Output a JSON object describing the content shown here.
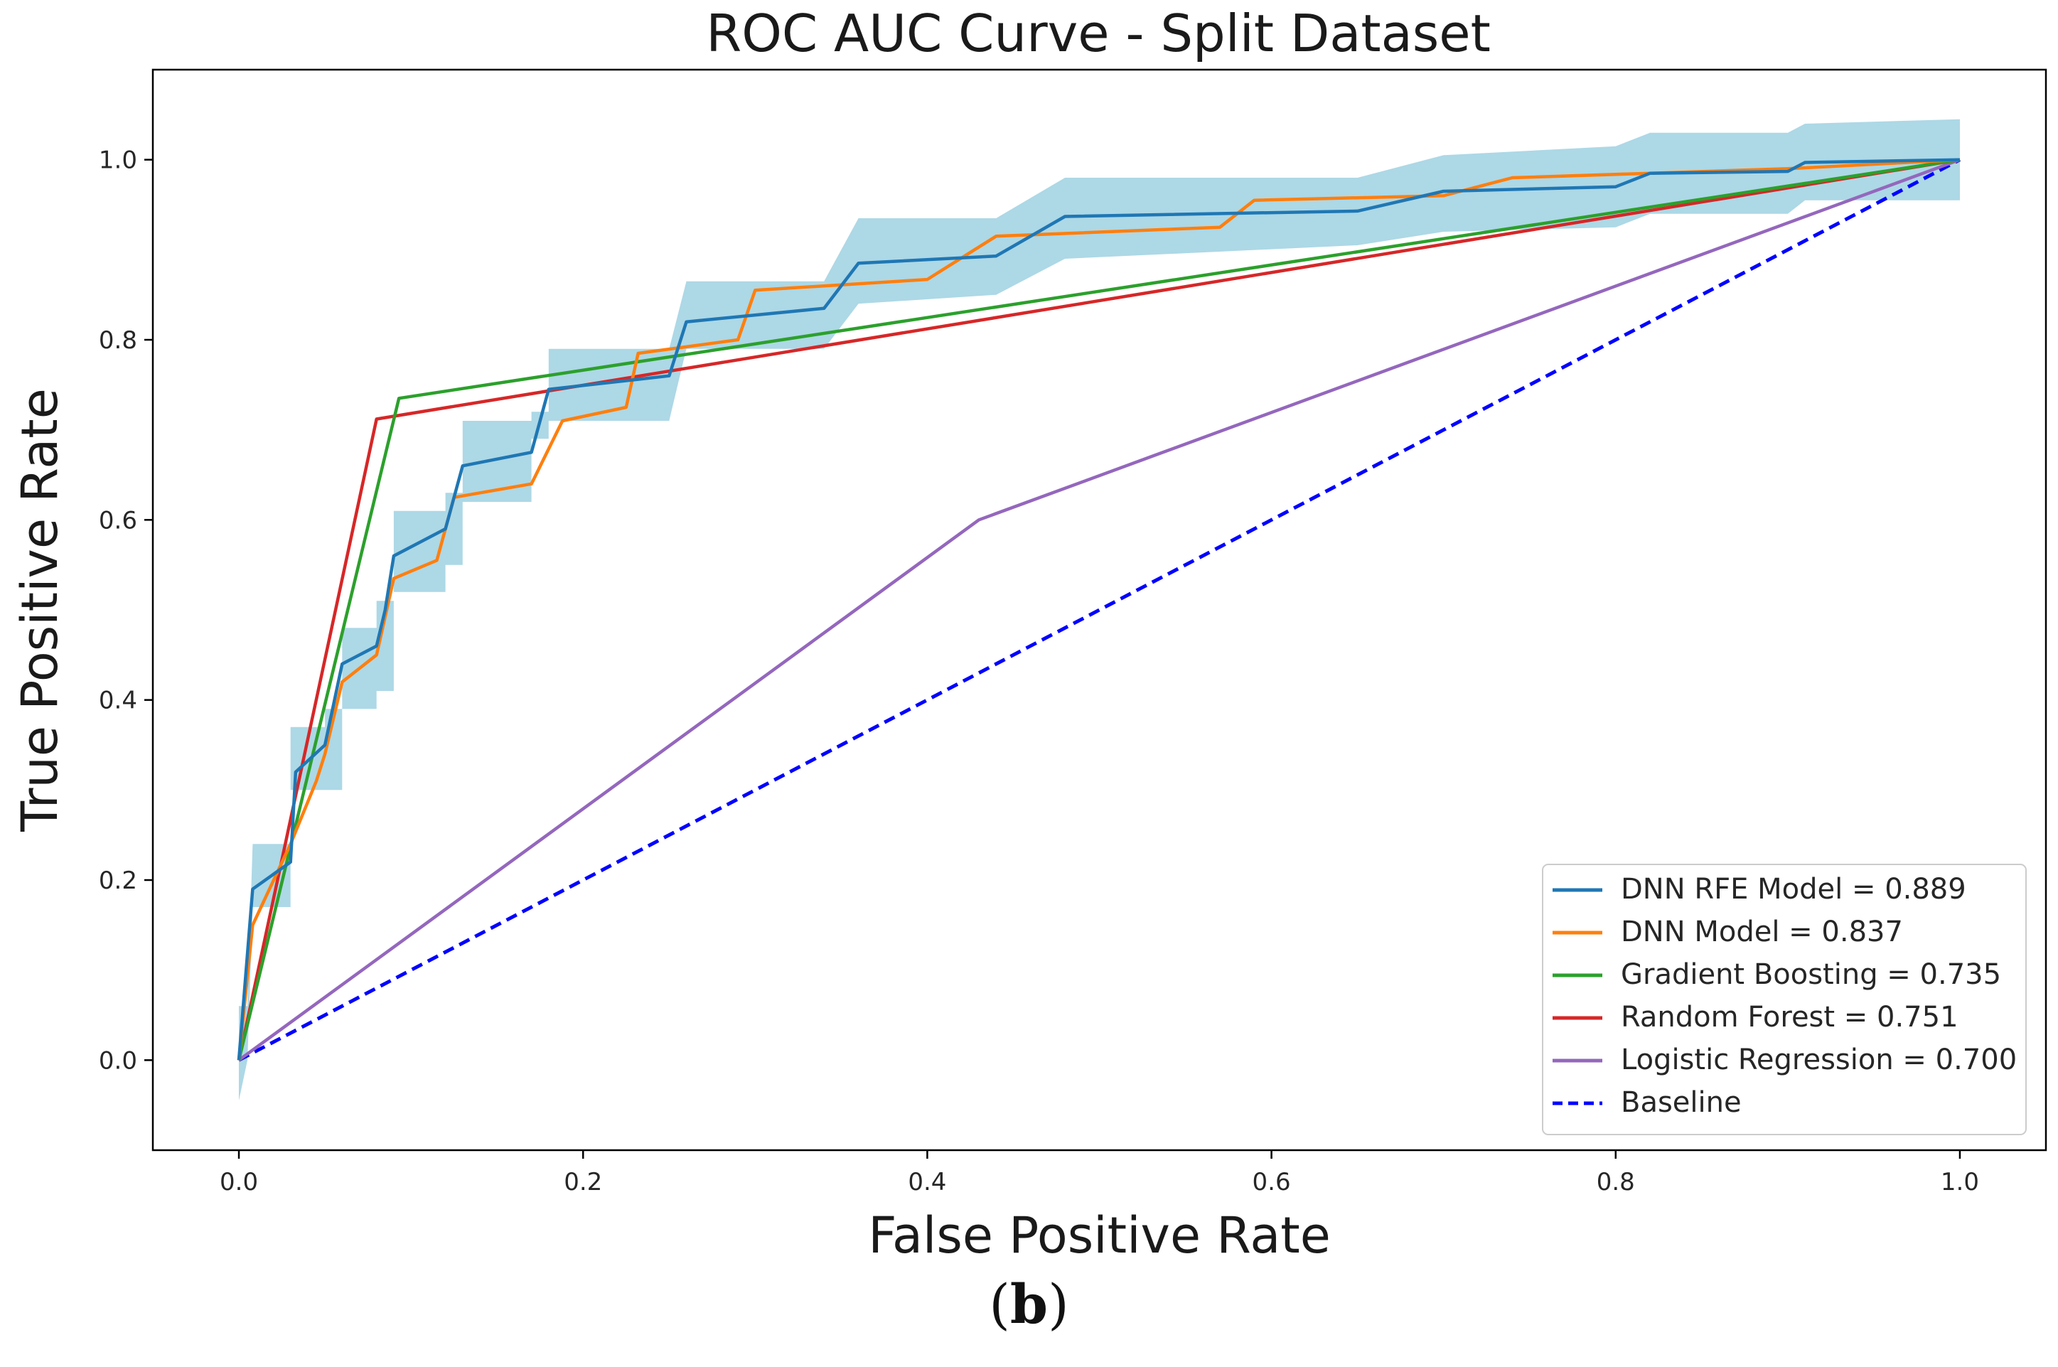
{
  "chart_data": {
    "type": "line",
    "title": "ROC AUC Curve - Split Dataset",
    "xlabel": "False Positive Rate",
    "ylabel": "True Positive Rate",
    "xlim": [
      -0.05,
      1.05
    ],
    "ylim": [
      -0.1,
      1.1
    ],
    "xticks": [
      0.0,
      0.2,
      0.4,
      0.6,
      0.8,
      1.0
    ],
    "xtick_labels": [
      "0.0",
      "0.2",
      "0.4",
      "0.6",
      "0.8",
      "1.0"
    ],
    "yticks": [
      0.0,
      0.2,
      0.4,
      0.6,
      0.8,
      1.0
    ],
    "ytick_labels": [
      "0.0",
      "0.2",
      "0.4",
      "0.6",
      "0.8",
      "1.0"
    ],
    "legend_position": "bottom-right",
    "confidence_band": {
      "series": "DNN RFE Model = 0.889",
      "color": "#add8e6",
      "upper": [
        [
          0.0,
          0.06
        ],
        [
          0.005,
          0.06
        ],
        [
          0.008,
          0.24
        ],
        [
          0.03,
          0.24
        ],
        [
          0.03,
          0.37
        ],
        [
          0.05,
          0.37
        ],
        [
          0.05,
          0.39
        ],
        [
          0.06,
          0.39
        ],
        [
          0.06,
          0.48
        ],
        [
          0.08,
          0.48
        ],
        [
          0.08,
          0.51
        ],
        [
          0.09,
          0.51
        ],
        [
          0.09,
          0.61
        ],
        [
          0.12,
          0.61
        ],
        [
          0.12,
          0.63
        ],
        [
          0.13,
          0.63
        ],
        [
          0.13,
          0.71
        ],
        [
          0.17,
          0.71
        ],
        [
          0.17,
          0.72
        ],
        [
          0.18,
          0.72
        ],
        [
          0.18,
          0.79
        ],
        [
          0.25,
          0.79
        ],
        [
          0.26,
          0.865
        ],
        [
          0.34,
          0.865
        ],
        [
          0.36,
          0.935
        ],
        [
          0.44,
          0.935
        ],
        [
          0.48,
          0.98
        ],
        [
          0.65,
          0.98
        ],
        [
          0.7,
          1.005
        ],
        [
          0.8,
          1.015
        ],
        [
          0.82,
          1.03
        ],
        [
          0.9,
          1.03
        ],
        [
          0.91,
          1.04
        ],
        [
          1.0,
          1.045
        ]
      ],
      "lower": [
        [
          1.0,
          0.955
        ],
        [
          0.91,
          0.955
        ],
        [
          0.9,
          0.94
        ],
        [
          0.82,
          0.94
        ],
        [
          0.8,
          0.925
        ],
        [
          0.7,
          0.92
        ],
        [
          0.65,
          0.905
        ],
        [
          0.48,
          0.89
        ],
        [
          0.44,
          0.85
        ],
        [
          0.36,
          0.84
        ],
        [
          0.34,
          0.79
        ],
        [
          0.26,
          0.79
        ],
        [
          0.25,
          0.71
        ],
        [
          0.18,
          0.71
        ],
        [
          0.18,
          0.69
        ],
        [
          0.17,
          0.69
        ],
        [
          0.17,
          0.62
        ],
        [
          0.13,
          0.62
        ],
        [
          0.13,
          0.55
        ],
        [
          0.12,
          0.55
        ],
        [
          0.12,
          0.52
        ],
        [
          0.09,
          0.52
        ],
        [
          0.09,
          0.41
        ],
        [
          0.08,
          0.41
        ],
        [
          0.08,
          0.39
        ],
        [
          0.06,
          0.39
        ],
        [
          0.06,
          0.3
        ],
        [
          0.05,
          0.3
        ],
        [
          0.05,
          0.3
        ],
        [
          0.03,
          0.3
        ],
        [
          0.03,
          0.17
        ],
        [
          0.008,
          0.17
        ],
        [
          0.005,
          0.0
        ],
        [
          0.0,
          -0.045
        ]
      ]
    },
    "series": [
      {
        "name": "DNN RFE Model = 0.889",
        "color": "#1f77b4",
        "dashed": false,
        "points": [
          [
            0.0,
            0.0
          ],
          [
            0.008,
            0.19
          ],
          [
            0.03,
            0.22
          ],
          [
            0.033,
            0.32
          ],
          [
            0.05,
            0.35
          ],
          [
            0.06,
            0.44
          ],
          [
            0.08,
            0.46
          ],
          [
            0.085,
            0.5
          ],
          [
            0.09,
            0.56
          ],
          [
            0.12,
            0.59
          ],
          [
            0.13,
            0.66
          ],
          [
            0.17,
            0.675
          ],
          [
            0.18,
            0.745
          ],
          [
            0.25,
            0.76
          ],
          [
            0.26,
            0.82
          ],
          [
            0.34,
            0.835
          ],
          [
            0.36,
            0.885
          ],
          [
            0.44,
            0.893
          ],
          [
            0.48,
            0.937
          ],
          [
            0.65,
            0.943
          ],
          [
            0.7,
            0.965
          ],
          [
            0.8,
            0.97
          ],
          [
            0.82,
            0.985
          ],
          [
            0.9,
            0.987
          ],
          [
            0.91,
            0.997
          ],
          [
            1.0,
            1.0
          ]
        ]
      },
      {
        "name": "DNN Model = 0.837",
        "color": "#ff7f0e",
        "dashed": false,
        "points": [
          [
            0.0,
            0.0
          ],
          [
            0.008,
            0.15
          ],
          [
            0.03,
            0.24
          ],
          [
            0.045,
            0.31
          ],
          [
            0.05,
            0.34
          ],
          [
            0.06,
            0.42
          ],
          [
            0.08,
            0.45
          ],
          [
            0.09,
            0.535
          ],
          [
            0.115,
            0.555
          ],
          [
            0.125,
            0.625
          ],
          [
            0.17,
            0.64
          ],
          [
            0.188,
            0.71
          ],
          [
            0.225,
            0.725
          ],
          [
            0.232,
            0.785
          ],
          [
            0.29,
            0.8
          ],
          [
            0.3,
            0.855
          ],
          [
            0.4,
            0.867
          ],
          [
            0.44,
            0.915
          ],
          [
            0.57,
            0.925
          ],
          [
            0.59,
            0.955
          ],
          [
            0.7,
            0.96
          ],
          [
            0.74,
            0.98
          ],
          [
            0.82,
            0.985
          ],
          [
            0.9,
            0.99
          ],
          [
            1.0,
            1.0
          ]
        ]
      },
      {
        "name": "Gradient Boosting = 0.735",
        "color": "#2ca02c",
        "dashed": false,
        "points": [
          [
            0.0,
            0.0
          ],
          [
            0.093,
            0.735
          ],
          [
            1.0,
            1.0
          ]
        ]
      },
      {
        "name": "Random Forest = 0.751",
        "color": "#d62728",
        "dashed": false,
        "points": [
          [
            0.0,
            0.0
          ],
          [
            0.08,
            0.712
          ],
          [
            1.0,
            1.0
          ]
        ]
      },
      {
        "name": "Logistic Regression = 0.700",
        "color": "#9467bd",
        "dashed": false,
        "points": [
          [
            0.0,
            0.0
          ],
          [
            0.43,
            0.6
          ],
          [
            1.0,
            1.0
          ]
        ]
      },
      {
        "name": "Baseline",
        "color": "#0000ff",
        "dashed": true,
        "points": [
          [
            0.0,
            0.0
          ],
          [
            1.0,
            1.0
          ]
        ]
      }
    ]
  },
  "caption": {
    "open": "(",
    "letter": "b",
    "close": ")"
  }
}
